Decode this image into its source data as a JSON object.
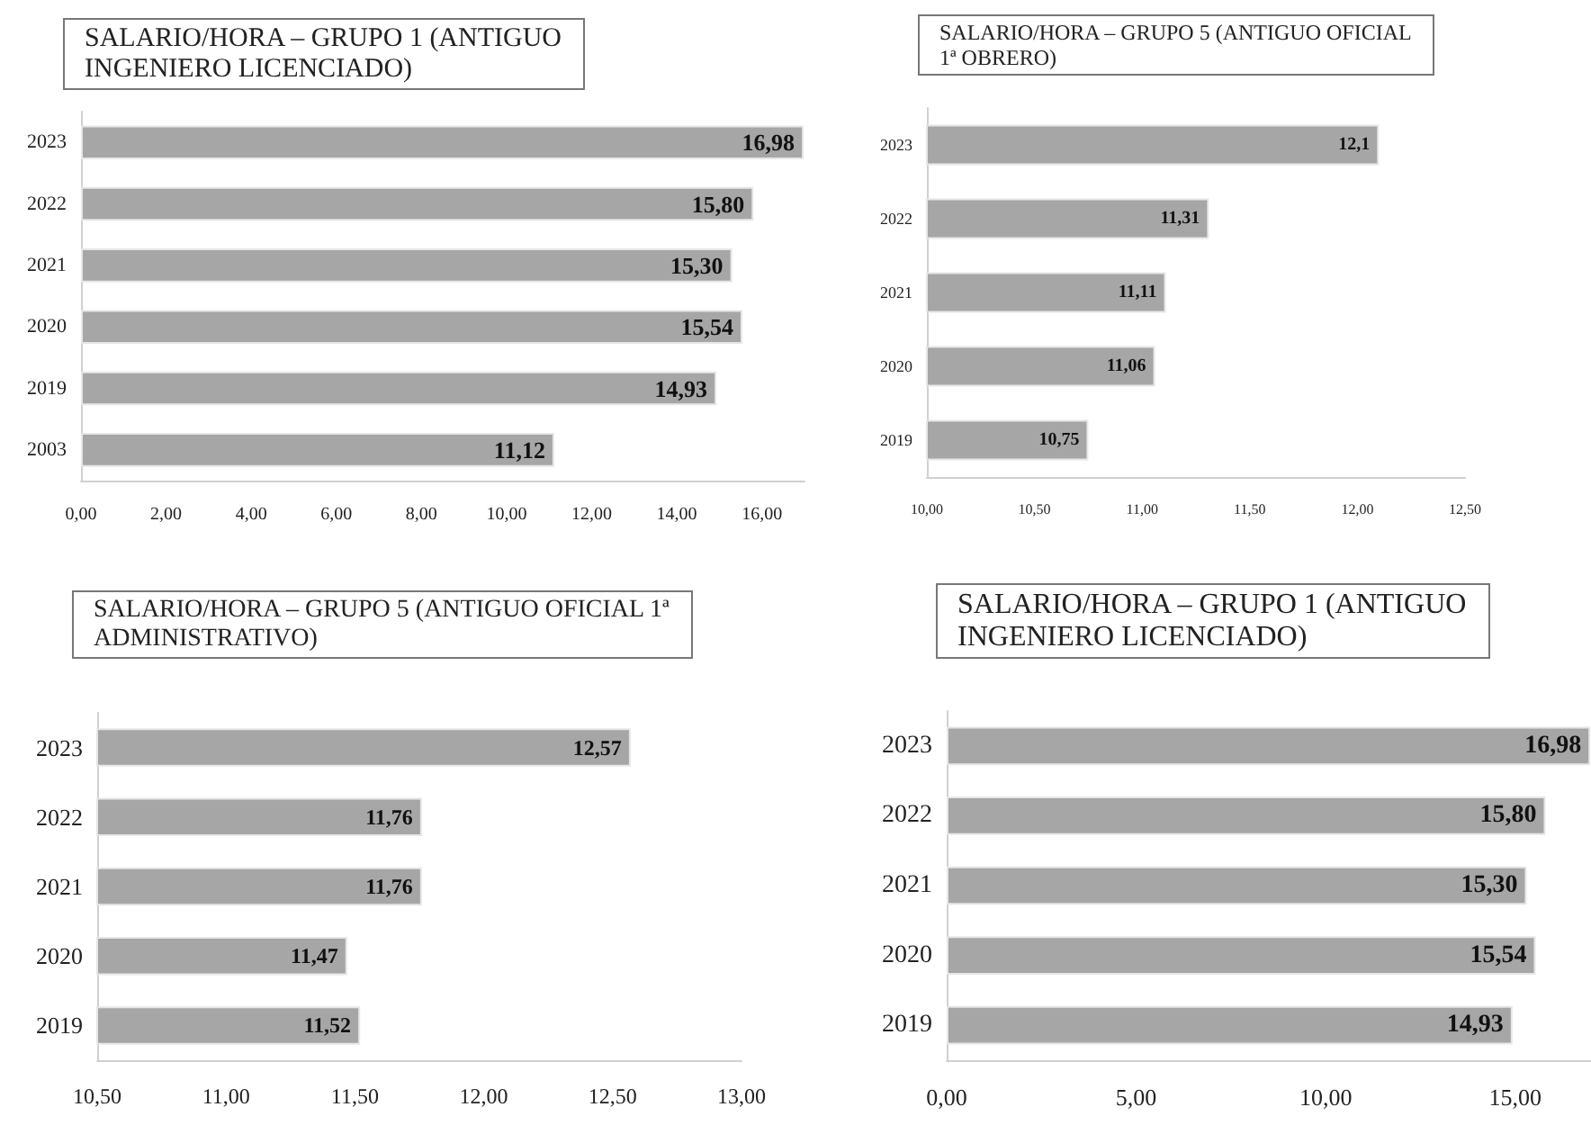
{
  "chart_data": [
    {
      "type": "bar",
      "orientation": "horizontal",
      "title": "SALARIO/HORA – GRUPO 1 (ANTIGUO\nINGENIERO LICENCIADO)",
      "categories": [
        "2023",
        "2022",
        "2021",
        "2020",
        "2019",
        "2003"
      ],
      "values": [
        16.98,
        15.8,
        15.3,
        15.54,
        14.93,
        11.12
      ],
      "value_labels": [
        "16,98",
        "15,80",
        "15,30",
        "15,54",
        "14,93",
        "11,12"
      ],
      "color": "#a6a6a6",
      "xlim": [
        0,
        17
      ],
      "xticks": [
        {
          "value": 0,
          "label": "0,00"
        },
        {
          "value": 2,
          "label": "2,00"
        },
        {
          "value": 4,
          "label": "4,00"
        },
        {
          "value": 6,
          "label": "6,00"
        },
        {
          "value": 8,
          "label": "8,00"
        },
        {
          "value": 10,
          "label": "10,00"
        },
        {
          "value": 12,
          "label": "12,00"
        },
        {
          "value": 14,
          "label": "14,00"
        },
        {
          "value": 16,
          "label": "16,00"
        }
      ],
      "grid": false
    },
    {
      "type": "bar",
      "orientation": "horizontal",
      "title": "SALARIO/HORA – GRUPO 5 (ANTIGUO OFICIAL\n1ª OBRERO)",
      "categories": [
        "2023",
        "2022",
        "2021",
        "2020",
        "2019"
      ],
      "values": [
        12.1,
        11.31,
        11.11,
        11.06,
        10.75
      ],
      "value_labels": [
        "12,1",
        "11,31",
        "11,11",
        "11,06",
        "10,75"
      ],
      "color": "#a6a6a6",
      "xlim": [
        10,
        12.5
      ],
      "xticks": [
        {
          "value": 10,
          "label": "10,00"
        },
        {
          "value": 10.5,
          "label": "10,50"
        },
        {
          "value": 11,
          "label": "11,00"
        },
        {
          "value": 11.5,
          "label": "11,50"
        },
        {
          "value": 12,
          "label": "12,00"
        },
        {
          "value": 12.5,
          "label": "12,50"
        }
      ],
      "grid": false
    },
    {
      "type": "bar",
      "orientation": "horizontal",
      "title": "SALARIO/HORA – GRUPO 5 (ANTIGUO OFICIAL 1ª\nADMINISTRATIVO)",
      "categories": [
        "2023",
        "2022",
        "2021",
        "2020",
        "2019"
      ],
      "values": [
        12.57,
        11.76,
        11.76,
        11.47,
        11.52
      ],
      "value_labels": [
        "12,57",
        "11,76",
        "11,76",
        "11,47",
        "11,52"
      ],
      "color": "#a6a6a6",
      "xlim": [
        10.5,
        13
      ],
      "xticks": [
        {
          "value": 10.5,
          "label": "10,50"
        },
        {
          "value": 11,
          "label": "11,00"
        },
        {
          "value": 11.5,
          "label": "11,50"
        },
        {
          "value": 12,
          "label": "12,00"
        },
        {
          "value": 12.5,
          "label": "12,50"
        },
        {
          "value": 13,
          "label": "13,00"
        }
      ],
      "grid": false
    },
    {
      "type": "bar",
      "orientation": "horizontal",
      "title": "SALARIO/HORA – GRUPO 1 (ANTIGUO\nINGENIERO LICENCIADO)",
      "categories": [
        "2023",
        "2022",
        "2021",
        "2020",
        "2019"
      ],
      "values": [
        16.98,
        15.8,
        15.3,
        15.54,
        14.93
      ],
      "value_labels": [
        "16,98",
        "15,80",
        "15,30",
        "15,54",
        "14,93"
      ],
      "color": "#a6a6a6",
      "xlim": [
        0,
        17
      ],
      "xticks": [
        {
          "value": 0,
          "label": "0,00"
        },
        {
          "value": 5,
          "label": "5,00"
        },
        {
          "value": 10,
          "label": "10,00"
        },
        {
          "value": 15,
          "label": "15,00"
        }
      ],
      "grid": false
    }
  ]
}
